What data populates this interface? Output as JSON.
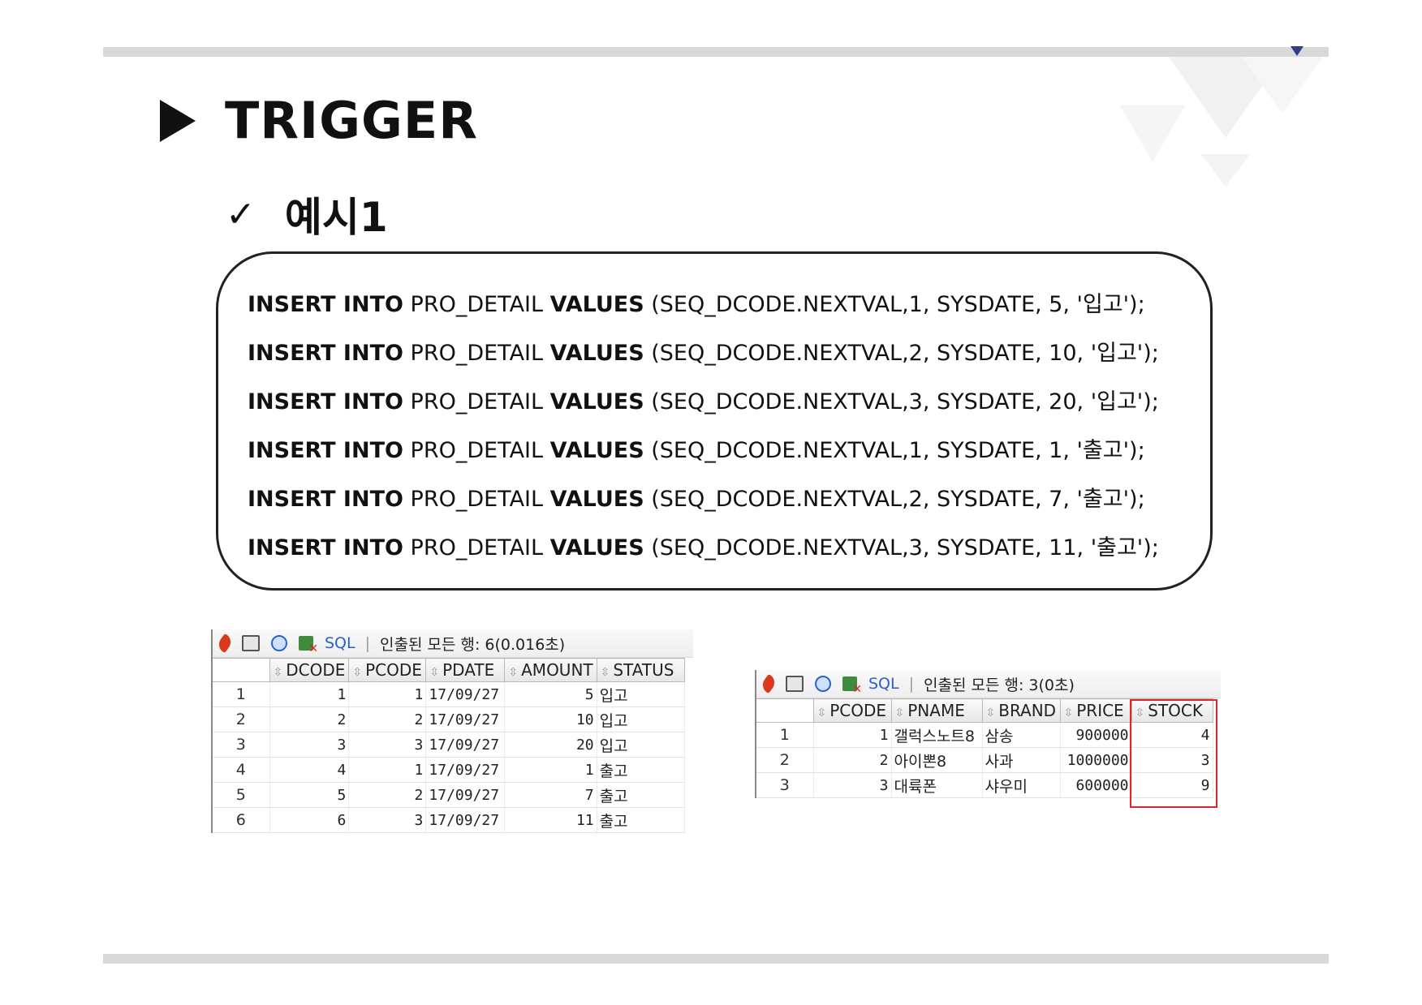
{
  "slide": {
    "title": "TRIGGER",
    "subtitle_mark": "✓",
    "subtitle": "예시1"
  },
  "code": [
    {
      "kw1": "INSERT INTO",
      "table": " PRO_DETAIL ",
      "kw2": "VALUES",
      "args": " (SEQ_DCODE.NEXTVAL,1, SYSDATE, 5, '입고');"
    },
    {
      "kw1": "INSERT INTO",
      "table": " PRO_DETAIL ",
      "kw2": "VALUES",
      "args": " (SEQ_DCODE.NEXTVAL,2, SYSDATE, 10, '입고');"
    },
    {
      "kw1": "INSERT INTO",
      "table": " PRO_DETAIL ",
      "kw2": "VALUES",
      "args": " (SEQ_DCODE.NEXTVAL,3, SYSDATE, 20, '입고');"
    },
    {
      "kw1": "INSERT INTO",
      "table": " PRO_DETAIL ",
      "kw2": "VALUES",
      "args": " (SEQ_DCODE.NEXTVAL,1, SYSDATE, 1, '출고');"
    },
    {
      "kw1": "INSERT INTO",
      "table": " PRO_DETAIL ",
      "kw2": "VALUES",
      "args": " (SEQ_DCODE.NEXTVAL,2, SYSDATE, 7, '출고');"
    },
    {
      "kw1": "INSERT INTO",
      "table": " PRO_DETAIL ",
      "kw2": "VALUES",
      "args": " (SEQ_DCODE.NEXTVAL,3, SYSDATE, 11, '출고');"
    }
  ],
  "grid_left": {
    "toolbar": {
      "icons": [
        "pin-icon",
        "print-icon",
        "refresh-icon",
        "export-excel-icon"
      ],
      "sql": "SQL",
      "sep": "|",
      "status": "인출된 모든 행: 6(0.016초)"
    },
    "columns": [
      "DCODE",
      "PCODE",
      "PDATE",
      "AMOUNT",
      "STATUS"
    ],
    "rows": [
      [
        "1",
        "1",
        "1",
        "17/09/27",
        "5",
        "입고"
      ],
      [
        "2",
        "2",
        "2",
        "17/09/27",
        "10",
        "입고"
      ],
      [
        "3",
        "3",
        "3",
        "17/09/27",
        "20",
        "입고"
      ],
      [
        "4",
        "4",
        "1",
        "17/09/27",
        "1",
        "출고"
      ],
      [
        "5",
        "5",
        "2",
        "17/09/27",
        "7",
        "출고"
      ],
      [
        "6",
        "6",
        "3",
        "17/09/27",
        "11",
        "출고"
      ]
    ]
  },
  "grid_right": {
    "toolbar": {
      "icons": [
        "pin-icon",
        "print-icon",
        "refresh-icon",
        "export-excel-icon"
      ],
      "sql": "SQL",
      "sep": "|",
      "status": "인출된 모든 행: 3(0초)"
    },
    "columns": [
      "PCODE",
      "PNAME",
      "BRAND",
      "PRICE",
      "STOCK"
    ],
    "rows": [
      [
        "1",
        "1",
        "갤럭스노트8",
        "삼송",
        "900000",
        "4"
      ],
      [
        "2",
        "2",
        "아이뽄8",
        "사과",
        "1000000",
        "3"
      ],
      [
        "3",
        "3",
        "대륙폰",
        "샤우미",
        "600000",
        "9"
      ]
    ],
    "highlight_column": "STOCK",
    "highlight_color": "#e0262a"
  },
  "colors": {
    "bar": "#d9d9d9",
    "accent": "#2f3c8f"
  }
}
